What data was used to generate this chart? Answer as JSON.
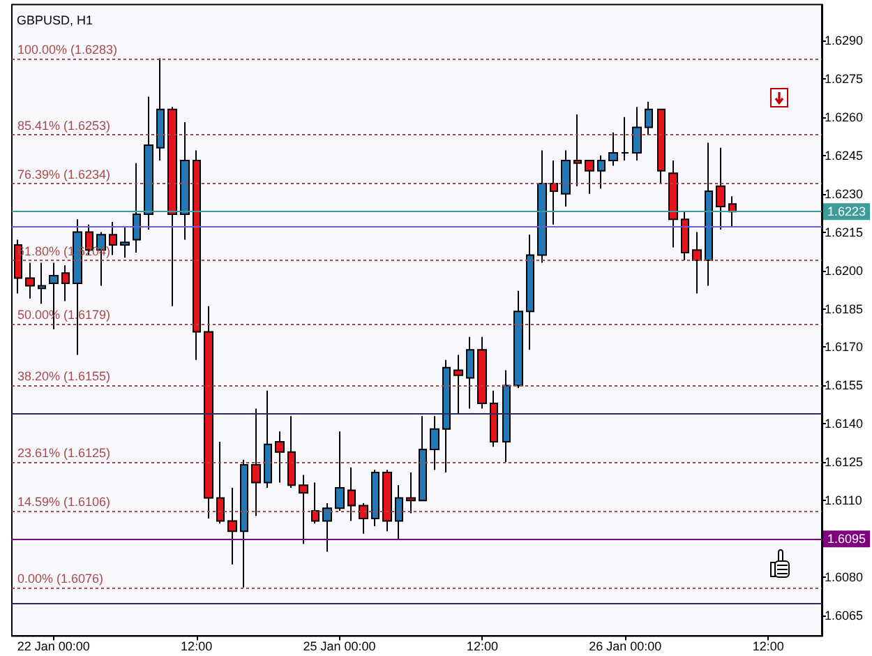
{
  "chart_data": {
    "type": "candlestick",
    "title": "GBPUSD, H1",
    "categories": [
      null,
      null,
      null,
      "22 Jan 00:00",
      null,
      null,
      null,
      null,
      null,
      null,
      null,
      null,
      null,
      null,
      null,
      "12:00",
      null,
      null,
      null,
      null,
      null,
      null,
      null,
      null,
      null,
      null,
      null,
      "25 Jan 00:00",
      null,
      null,
      null,
      null,
      null,
      null,
      null,
      null,
      null,
      null,
      null,
      "12:00",
      null,
      null,
      null,
      null,
      null,
      null,
      null,
      null,
      null,
      null,
      null,
      "26 Jan 00:00",
      null,
      null,
      null,
      null,
      null,
      null,
      null,
      null,
      null,
      null,
      null,
      "12:00",
      null,
      null,
      null,
      null
    ],
    "ohlc": [
      [
        1.621,
        1.6212,
        1.6191,
        1.6197
      ],
      [
        1.6197,
        1.6203,
        1.6189,
        1.6194
      ],
      [
        1.6193,
        1.6203,
        1.6187,
        1.6194
      ],
      [
        1.6195,
        1.6203,
        1.6177,
        1.6198
      ],
      [
        1.6199,
        1.6202,
        1.6188,
        1.6195
      ],
      [
        1.6195,
        1.622,
        1.6167,
        1.6215
      ],
      [
        1.6215,
        1.6218,
        1.6206,
        1.6208
      ],
      [
        1.6208,
        1.6215,
        1.6194,
        1.6214
      ],
      [
        1.6214,
        1.6219,
        1.6206,
        1.621
      ],
      [
        1.621,
        1.6217,
        1.6205,
        1.6211
      ],
      [
        1.6212,
        1.6242,
        1.6207,
        1.6222
      ],
      [
        1.6222,
        1.6268,
        1.6216,
        1.6249
      ],
      [
        1.6248,
        1.6283,
        1.6243,
        1.6263
      ],
      [
        1.6263,
        1.6264,
        1.6186,
        1.6222
      ],
      [
        1.6222,
        1.6258,
        1.6212,
        1.6243
      ],
      [
        1.6243,
        1.6247,
        1.6165,
        1.6176
      ],
      [
        1.6176,
        1.6186,
        1.6103,
        1.6111
      ],
      [
        1.6111,
        1.6133,
        1.6101,
        1.6102
      ],
      [
        1.6102,
        1.6115,
        1.6085,
        1.6098
      ],
      [
        1.6098,
        1.6126,
        1.6076,
        1.6124
      ],
      [
        1.6124,
        1.6146,
        1.6104,
        1.6117
      ],
      [
        1.6117,
        1.6153,
        1.6115,
        1.6132
      ],
      [
        1.6133,
        1.6137,
        1.6117,
        1.6129
      ],
      [
        1.6129,
        1.6143,
        1.6115,
        1.6116
      ],
      [
        1.6116,
        1.612,
        1.6093,
        1.6113
      ],
      [
        1.6106,
        1.6117,
        1.6101,
        1.6102
      ],
      [
        1.6102,
        1.6109,
        1.609,
        1.6107
      ],
      [
        1.6107,
        1.6137,
        1.6106,
        1.6115
      ],
      [
        1.6114,
        1.6123,
        1.6102,
        1.6108
      ],
      [
        1.6108,
        1.6109,
        1.6097,
        1.6103
      ],
      [
        1.6103,
        1.6122,
        1.61,
        1.6121
      ],
      [
        1.6121,
        1.6122,
        1.6098,
        1.6102
      ],
      [
        1.6102,
        1.6116,
        1.6095,
        1.6111
      ],
      [
        1.6111,
        1.6121,
        1.6105,
        1.611
      ],
      [
        1.611,
        1.6143,
        1.611,
        1.613
      ],
      [
        1.613,
        1.6143,
        1.6122,
        1.6138
      ],
      [
        1.6138,
        1.6165,
        1.6121,
        1.6162
      ],
      [
        1.6161,
        1.6167,
        1.6144,
        1.6159
      ],
      [
        1.6158,
        1.6174,
        1.6146,
        1.6169
      ],
      [
        1.6169,
        1.6174,
        1.6146,
        1.6148
      ],
      [
        1.6148,
        1.6153,
        1.6131,
        1.6133
      ],
      [
        1.6133,
        1.6161,
        1.6125,
        1.6155
      ],
      [
        1.6155,
        1.6192,
        1.6154,
        1.6184
      ],
      [
        1.6184,
        1.6214,
        1.6169,
        1.6206
      ],
      [
        1.6206,
        1.6247,
        1.6203,
        1.6234
      ],
      [
        1.6234,
        1.6243,
        1.6218,
        1.6231
      ],
      [
        1.623,
        1.6247,
        1.6225,
        1.6243
      ],
      [
        1.6243,
        1.6261,
        1.6233,
        1.6242
      ],
      [
        1.6243,
        1.6243,
        1.623,
        1.6239
      ],
      [
        1.6239,
        1.6245,
        1.6232,
        1.6243
      ],
      [
        1.6243,
        1.6254,
        1.6241,
        1.6246
      ],
      [
        1.6246,
        1.626,
        1.6243,
        1.6246
      ],
      [
        1.6246,
        1.6264,
        1.6243,
        1.6256
      ],
      [
        1.6256,
        1.6266,
        1.6253,
        1.6263
      ],
      [
        1.6263,
        1.6263,
        1.6234,
        1.6239
      ],
      [
        1.6238,
        1.6243,
        1.6209,
        1.622
      ],
      [
        1.622,
        1.6223,
        1.6204,
        1.6207
      ],
      [
        1.6208,
        1.6215,
        1.6191,
        1.6204
      ],
      [
        1.6204,
        1.625,
        1.6194,
        1.6231
      ],
      [
        1.6233,
        1.6248,
        1.6216,
        1.6225
      ],
      [
        1.6226,
        1.6229,
        1.6217,
        1.6223
      ],
      null,
      null,
      null,
      null,
      null,
      null,
      null
    ],
    "colors": [
      "#e5141b",
      "#e5141b",
      "#2377b5",
      "#2377b5",
      "#e5141b",
      "#2377b5",
      "#e5141b",
      "#2377b5",
      "#e5141b",
      "#2377b5",
      "#2377b5",
      "#2377b5",
      "#2377b5",
      "#e5141b",
      "#2377b5",
      "#e5141b",
      "#e5141b",
      "#e5141b",
      "#e5141b",
      "#2377b5",
      "#e5141b",
      "#2377b5",
      "#e5141b",
      "#e5141b",
      "#e5141b",
      "#e5141b",
      "#2377b5",
      "#2377b5",
      "#e5141b",
      "#e5141b",
      "#2377b5",
      "#e5141b",
      "#2377b5",
      "#e5141b",
      "#2377b5",
      "#2377b5",
      "#2377b5",
      "#e5141b",
      "#2377b5",
      "#e5141b",
      "#e5141b",
      "#2377b5",
      "#2377b5",
      "#2377b5",
      "#2377b5",
      "#e5141b",
      "#2377b5",
      "#e5141b",
      "#e5141b",
      "#2377b5",
      "#2377b5",
      "#000000",
      "#2377b5",
      "#2377b5",
      "#e5141b",
      "#e5141b",
      "#e5141b",
      "#e5141b",
      "#2377b5",
      "#e5141b",
      "#e5141b",
      null,
      null,
      null,
      null,
      null,
      null,
      null
    ],
    "ylim": [
      1.6057,
      1.6304
    ],
    "yticks": [
      {
        "value": 1.6065,
        "label": "1.6065"
      },
      {
        "value": 1.608,
        "label": "1.6080"
      },
      {
        "value": 1.611,
        "label": "1.6110"
      },
      {
        "value": 1.6125,
        "label": "1.6125"
      },
      {
        "value": 1.614,
        "label": "1.6140"
      },
      {
        "value": 1.6155,
        "label": "1.6155"
      },
      {
        "value": 1.617,
        "label": "1.6170"
      },
      {
        "value": 1.6185,
        "label": "1.6185"
      },
      {
        "value": 1.62,
        "label": "1.6200"
      },
      {
        "value": 1.6215,
        "label": "1.6215"
      },
      {
        "value": 1.623,
        "label": "1.6230"
      },
      {
        "value": 1.6245,
        "label": "1.6245"
      },
      {
        "value": 1.626,
        "label": "1.6260"
      },
      {
        "value": 1.6275,
        "label": "1.6275"
      },
      {
        "value": 1.629,
        "label": "1.6290"
      }
    ],
    "ref_lines": [
      {
        "axis": "y",
        "value": 1.6283,
        "label": "100.00% (1.6283)",
        "color": "#a84a4a",
        "line_style": "dotted"
      },
      {
        "axis": "y",
        "value": 1.6253,
        "label": "85.41% (1.6253)",
        "color": "#a84a4a",
        "line_style": "dotted"
      },
      {
        "axis": "y",
        "value": 1.6234,
        "label": "76.39% (1.6234)",
        "color": "#a84a4a",
        "line_style": "dotted"
      },
      {
        "axis": "y",
        "value": 1.6204,
        "label": "61.80% (1.6204)",
        "color": "#a84a4a",
        "line_style": "dotted"
      },
      {
        "axis": "y",
        "value": 1.6179,
        "label": "50.00% (1.6179)",
        "color": "#a84a4a",
        "line_style": "dotted"
      },
      {
        "axis": "y",
        "value": 1.6155,
        "label": "38.20% (1.6155)",
        "color": "#a84a4a",
        "line_style": "dotted"
      },
      {
        "axis": "y",
        "value": 1.6125,
        "label": "23.61% (1.6125)",
        "color": "#a84a4a",
        "line_style": "dotted"
      },
      {
        "axis": "y",
        "value": 1.6106,
        "label": "14.59% (1.6106)",
        "color": "#a84a4a",
        "line_style": "dotted"
      },
      {
        "axis": "y",
        "value": 1.6076,
        "label": "0.00% (1.6076)",
        "color": "#a84a4a",
        "line_style": "dotted"
      },
      {
        "axis": "y",
        "value": 1.6223,
        "label": "1.6223",
        "color": "#3c9c98",
        "line_style": "solid"
      },
      {
        "axis": "y",
        "value": 1.6217,
        "color": "#6262c8",
        "line_style": "solid"
      },
      {
        "axis": "y",
        "value": 1.6144,
        "color": "#2c2c5c",
        "line_style": "solid"
      },
      {
        "axis": "y",
        "value": 1.6095,
        "label": "1.6095",
        "color": "#800080",
        "line_style": "solid"
      },
      {
        "axis": "y",
        "value": 1.607,
        "color": "#2c2c5c",
        "line_style": "solid"
      }
    ]
  }
}
